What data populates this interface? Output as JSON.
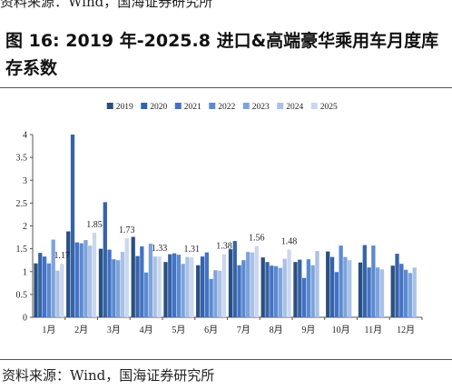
{
  "header": {
    "source_top": "资料来源：Wind，国海证券研究所",
    "title": "图 16:  2019 年-2025.8 进口&高端豪华乘用车月度库存系数"
  },
  "footer": {
    "source": "资料来源：Wind，国海证券研究所"
  },
  "chart_data": {
    "type": "bar",
    "title": "",
    "xlabel": "",
    "ylabel": "",
    "ylim": [
      0,
      4
    ],
    "yticks": [
      "0",
      "0.5",
      "1",
      "1.5",
      "2",
      "2.5",
      "3",
      "3.5",
      "4"
    ],
    "grid": false,
    "legend_position": "top",
    "categories": [
      "1月",
      "2月",
      "3月",
      "4月",
      "5月",
      "6月",
      "7月",
      "8月",
      "9月",
      "10月",
      "11月",
      "12月"
    ],
    "series": [
      {
        "name": "2019",
        "color": "#2b4f81",
        "values": [
          1.18,
          1.88,
          1.5,
          1.76,
          1.21,
          1.14,
          1.49,
          1.31,
          1.21,
          1.44,
          1.2,
          1.13
        ]
      },
      {
        "name": "2020",
        "color": "#3563a8",
        "values": [
          1.41,
          4.0,
          2.52,
          1.34,
          1.38,
          1.33,
          1.67,
          1.21,
          1.26,
          1.32,
          1.58,
          1.39
        ]
      },
      {
        "name": "2021",
        "color": "#4472c4",
        "values": [
          1.33,
          1.64,
          1.48,
          1.55,
          1.4,
          1.42,
          1.14,
          1.13,
          0.86,
          0.99,
          1.09,
          1.17
        ]
      },
      {
        "name": "2022",
        "color": "#5a8ad1",
        "values": [
          1.18,
          1.62,
          1.27,
          0.98,
          1.37,
          0.84,
          1.25,
          1.12,
          1.27,
          1.57,
          1.57,
          1.04
        ]
      },
      {
        "name": "2023",
        "color": "#7ea3db",
        "values": [
          1.7,
          1.69,
          1.25,
          1.61,
          1.17,
          1.03,
          1.43,
          1.08,
          1.14,
          1.32,
          1.09,
          0.97
        ]
      },
      {
        "name": "2024",
        "color": "#a9c1e6",
        "values": [
          1.02,
          1.57,
          1.43,
          1.33,
          1.32,
          1.02,
          1.42,
          1.28,
          1.45,
          1.25,
          1.05,
          1.09
        ]
      },
      {
        "name": "2025",
        "color": "#cbd7ee",
        "values": [
          1.17,
          1.85,
          1.73,
          1.33,
          1.31,
          1.38,
          1.56,
          1.48,
          null,
          null,
          null,
          null
        ]
      }
    ],
    "data_labels": [
      {
        "series": "2025",
        "category": "1月",
        "text": "1.17"
      },
      {
        "series": "2025",
        "category": "2月",
        "text": "1.85"
      },
      {
        "series": "2025",
        "category": "3月",
        "text": "1.73"
      },
      {
        "series": "2025",
        "category": "4月",
        "text": "1.33"
      },
      {
        "series": "2025",
        "category": "5月",
        "text": "1.31"
      },
      {
        "series": "2025",
        "category": "6月",
        "text": "1.38"
      },
      {
        "series": "2025",
        "category": "7月",
        "text": "1.56"
      },
      {
        "series": "2025",
        "category": "8月",
        "text": "1.48"
      }
    ]
  }
}
